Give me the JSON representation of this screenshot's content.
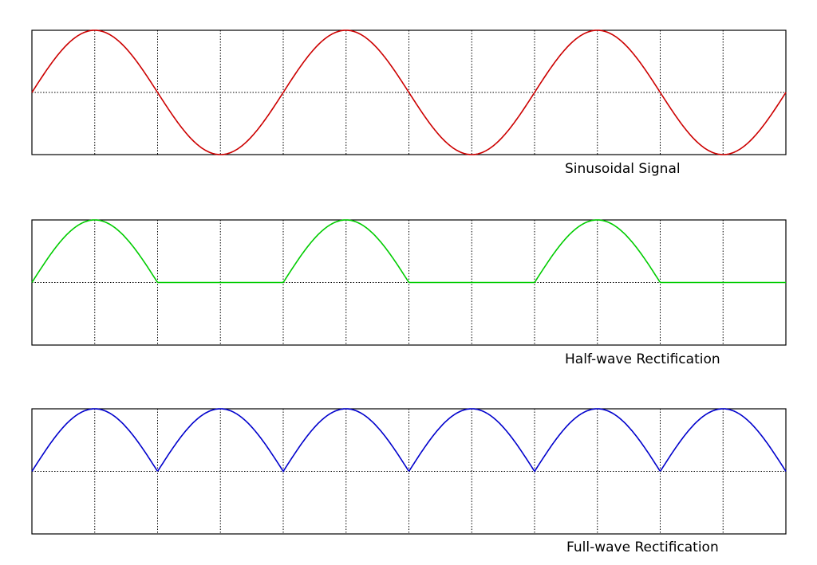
{
  "panels": [
    {
      "caption": "Sinusoidal Signal"
    },
    {
      "caption": "Half-wave Rectification"
    },
    {
      "caption": "Full-wave Rectification"
    }
  ]
}
